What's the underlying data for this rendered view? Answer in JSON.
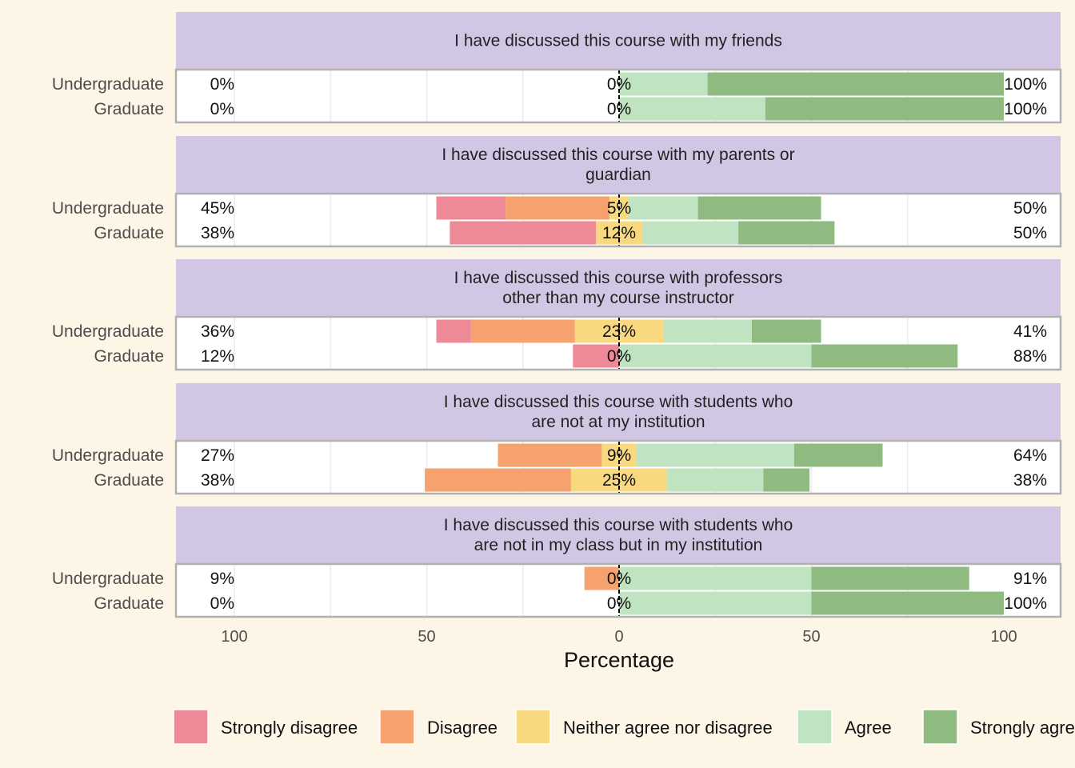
{
  "chart_data": {
    "type": "bar",
    "subtype": "diverging-stacked-likert",
    "xlabel": "Percentage",
    "x_ticks": [
      100,
      50,
      0,
      50,
      100
    ],
    "xlim": [
      -100,
      100
    ],
    "legend_position": "bottom",
    "grid": true,
    "levels": [
      "Strongly disagree",
      "Disagree",
      "Neither agree nor disagree",
      "Agree",
      "Strongly agree"
    ],
    "colors": {
      "Strongly disagree": "#ee8a97",
      "Disagree": "#f6a26f",
      "Neither agree nor disagree": "#f9d97f",
      "Agree": "#c0e3c1",
      "Strongly agree": "#8fbb80",
      "strip": "#d1c7e4",
      "panel_border": "#b1b1b1"
    },
    "panels": [
      {
        "title_lines": [
          "I have discussed this course with my friends"
        ],
        "rows": [
          {
            "group": "Undergraduate",
            "values": [
              0,
              0,
              0,
              23,
              77
            ],
            "left_label": "0%",
            "center_label": "0%",
            "right_label": "100%"
          },
          {
            "group": "Graduate",
            "values": [
              0,
              0,
              0,
              38,
              62
            ],
            "left_label": "0%",
            "center_label": "0%",
            "right_label": "100%"
          }
        ]
      },
      {
        "title_lines": [
          "I have discussed this course with my parents or",
          "guardian"
        ],
        "rows": [
          {
            "group": "Undergraduate",
            "values": [
              18,
              27,
              5,
              18,
              32
            ],
            "left_label": "45%",
            "center_label": "5%",
            "right_label": "50%"
          },
          {
            "group": "Graduate",
            "values": [
              38,
              0,
              12,
              25,
              25
            ],
            "left_label": "38%",
            "center_label": "12%",
            "right_label": "50%"
          }
        ]
      },
      {
        "title_lines": [
          "I have discussed this course with professors",
          "other than my course instructor"
        ],
        "rows": [
          {
            "group": "Undergraduate",
            "values": [
              9,
              27,
              23,
              23,
              18
            ],
            "left_label": "36%",
            "center_label": "23%",
            "right_label": "41%"
          },
          {
            "group": "Graduate",
            "values": [
              12,
              0,
              0,
              50,
              38
            ],
            "left_label": "12%",
            "center_label": "0%",
            "right_label": "88%"
          }
        ]
      },
      {
        "title_lines": [
          "I have discussed this course with students who",
          "are not at my institution"
        ],
        "rows": [
          {
            "group": "Undergraduate",
            "values": [
              0,
              27,
              9,
              41,
              23
            ],
            "left_label": "27%",
            "center_label": "9%",
            "right_label": "64%"
          },
          {
            "group": "Graduate",
            "values": [
              0,
              38,
              25,
              25,
              12
            ],
            "left_label": "38%",
            "center_label": "25%",
            "right_label": "38%"
          }
        ]
      },
      {
        "title_lines": [
          "I have discussed this course with students who",
          "are not in my class but in my institution"
        ],
        "rows": [
          {
            "group": "Undergraduate",
            "values": [
              0,
              9,
              0,
              50,
              41
            ],
            "left_label": "9%",
            "center_label": "0%",
            "right_label": "91%"
          },
          {
            "group": "Graduate",
            "values": [
              0,
              0,
              0,
              50,
              50
            ],
            "left_label": "0%",
            "center_label": "0%",
            "right_label": "100%"
          }
        ]
      }
    ]
  }
}
